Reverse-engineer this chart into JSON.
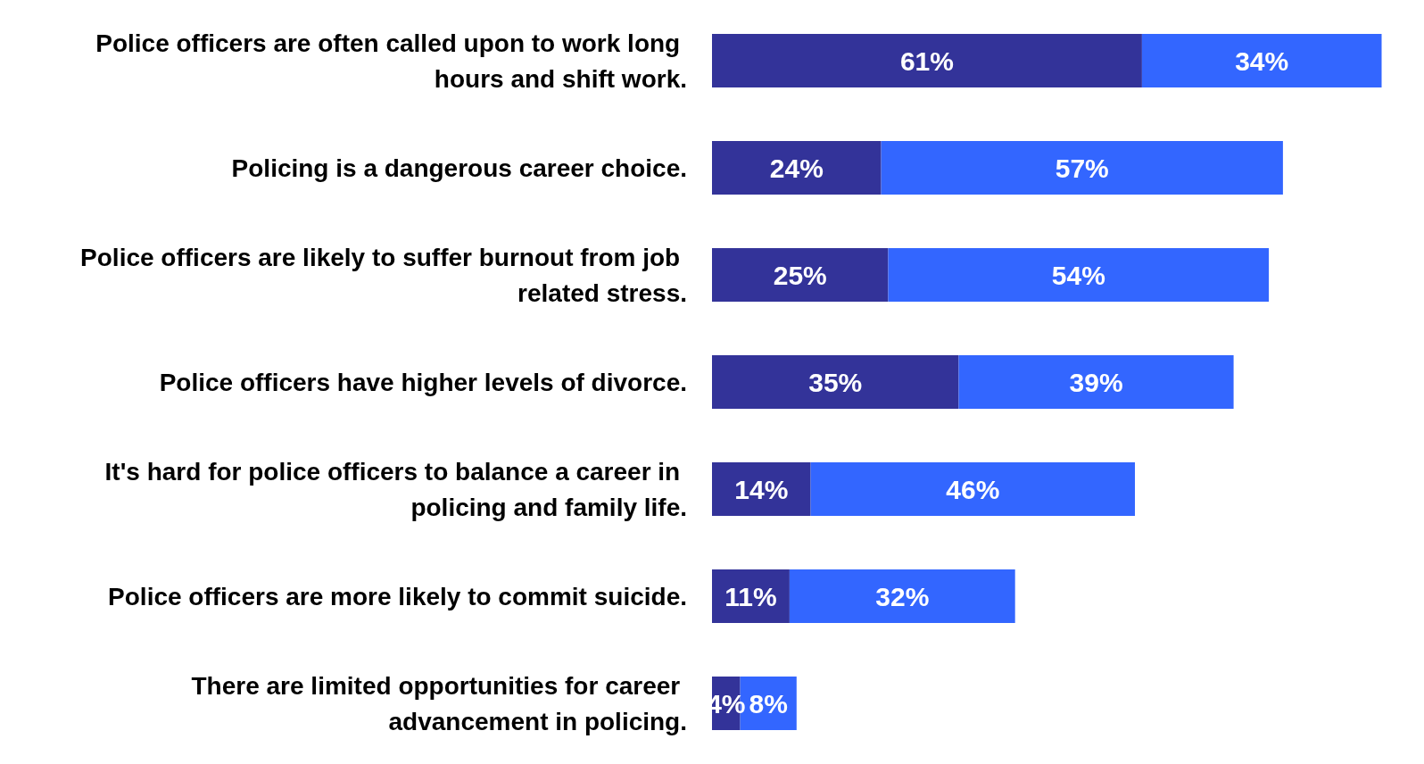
{
  "chart_data": {
    "type": "bar",
    "orientation": "horizontal",
    "stacked": true,
    "categories": [
      "Police officers are often called upon to work long hours and shift work.",
      "Policing is a dangerous career choice.",
      "Police officers are likely to suffer burnout from job related stress.",
      "Police officers have higher levels of divorce.",
      "It's hard for police officers to balance a career in policing and family life.",
      "Police officers are more likely to commit suicide.",
      "There are limited opportunities for career advancement in policing."
    ],
    "series": [
      {
        "color": "#333399",
        "values": [
          61,
          24,
          25,
          35,
          14,
          11,
          4
        ],
        "value_labels": [
          "61%",
          "24%",
          "25%",
          "35%",
          "14%",
          "11%",
          "4%"
        ]
      },
      {
        "color": "#3366ff",
        "values": [
          34,
          57,
          54,
          39,
          46,
          32,
          8
        ],
        "value_labels": [
          "34%",
          "57%",
          "54%",
          "39%",
          "46%",
          "32%",
          "8%"
        ]
      }
    ]
  }
}
